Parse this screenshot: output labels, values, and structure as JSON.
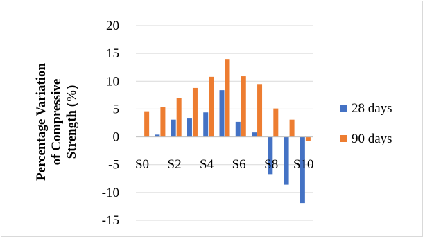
{
  "chart_data": {
    "type": "bar",
    "categories": [
      "S0",
      "S1",
      "S2",
      "S3",
      "S4",
      "S5",
      "S6",
      "S7",
      "S8",
      "S9",
      "S10"
    ],
    "tick_labels": [
      "S0",
      "",
      "S2",
      "",
      "S4",
      "",
      "S6",
      "",
      "S8",
      "",
      "S10"
    ],
    "series": [
      {
        "name": "28 days",
        "color": "#4472C4",
        "values": [
          0,
          0.4,
          3.1,
          3.3,
          4.4,
          8.4,
          2.7,
          0.8,
          -6.7,
          -8.6,
          -11.9
        ]
      },
      {
        "name": "90 days",
        "color": "#ED7D31",
        "values": [
          4.6,
          5.3,
          7.0,
          8.8,
          10.8,
          14.0,
          10.9,
          9.5,
          5.1,
          3.1,
          -0.7
        ]
      }
    ],
    "ylabel_lines": [
      "Percentage Variation",
      "of Compressive",
      "Strength (%)"
    ],
    "ylim": [
      -15,
      20
    ],
    "yticks": [
      -15,
      -10,
      -5,
      0,
      5,
      10,
      15,
      20
    ],
    "grid": true,
    "legend_position": "right"
  }
}
